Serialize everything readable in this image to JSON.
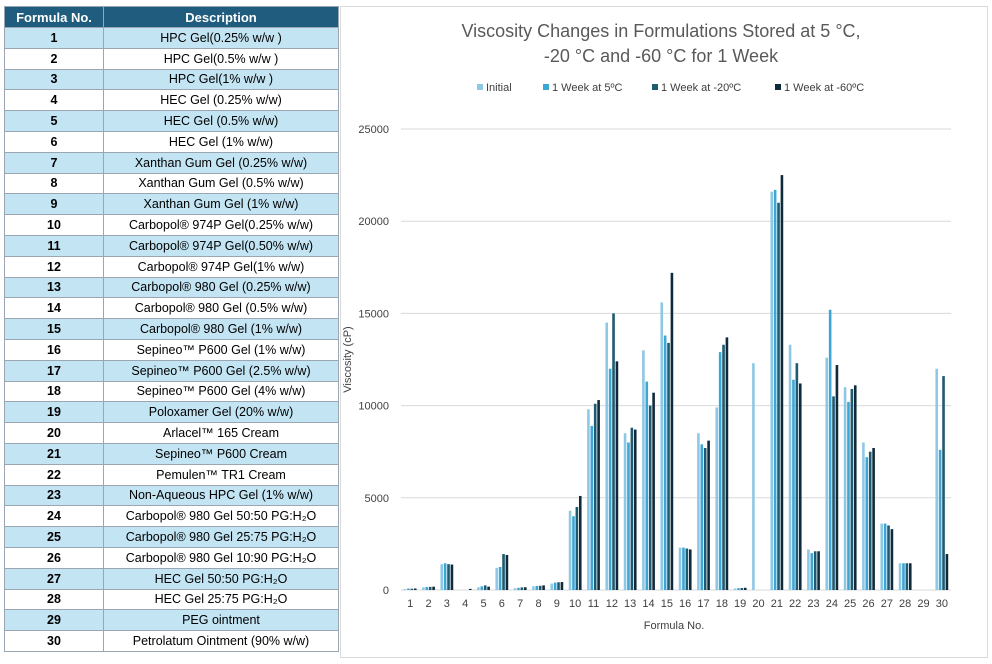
{
  "table": {
    "headers": [
      "Formula No.",
      "Description"
    ],
    "rows": [
      {
        "no": "1",
        "desc": "HPC Gel(0.25% w/w )"
      },
      {
        "no": "2",
        "desc": "HPC Gel(0.5% w/w )"
      },
      {
        "no": "3",
        "desc": "HPC Gel(1% w/w )"
      },
      {
        "no": "4",
        "desc": "HEC Gel (0.25% w/w)"
      },
      {
        "no": "5",
        "desc": "HEC Gel (0.5% w/w)"
      },
      {
        "no": "6",
        "desc": "HEC Gel (1% w/w)"
      },
      {
        "no": "7",
        "desc": "Xanthan Gum Gel (0.25% w/w)"
      },
      {
        "no": "8",
        "desc": "Xanthan Gum Gel (0.5% w/w)"
      },
      {
        "no": "9",
        "desc": "Xanthan Gum Gel (1% w/w)"
      },
      {
        "no": "10",
        "desc": "Carbopol® 974P Gel(0.25% w/w)"
      },
      {
        "no": "11",
        "desc": "Carbopol® 974P Gel(0.50% w/w)"
      },
      {
        "no": "12",
        "desc": "Carbopol® 974P Gel(1% w/w)"
      },
      {
        "no": "13",
        "desc": "Carbopol® 980 Gel (0.25% w/w)"
      },
      {
        "no": "14",
        "desc": "Carbopol® 980 Gel (0.5% w/w)"
      },
      {
        "no": "15",
        "desc": "Carbopol® 980 Gel (1% w/w)"
      },
      {
        "no": "16",
        "desc": "Sepineo™ P600 Gel (1% w/w)"
      },
      {
        "no": "17",
        "desc": "Sepineo™ P600 Gel (2.5% w/w)"
      },
      {
        "no": "18",
        "desc": "Sepineo™ P600 Gel (4% w/w)"
      },
      {
        "no": "19",
        "desc": "Poloxamer Gel (20% w/w)"
      },
      {
        "no": "20",
        "desc": "Arlacel™ 165 Cream"
      },
      {
        "no": "21",
        "desc": "Sepineo™ P600 Cream"
      },
      {
        "no": "22",
        "desc": "Pemulen™ TR1 Cream"
      },
      {
        "no": "23",
        "desc": "Non-Aqueous HPC Gel (1% w/w)"
      },
      {
        "no": "24",
        "desc": "Carbopol® 980 Gel 50:50 PG:H₂O"
      },
      {
        "no": "25",
        "desc": "Carbopol® 980 Gel 25:75 PG:H₂O"
      },
      {
        "no": "26",
        "desc": "Carbopol® 980 Gel 10:90 PG:H₂O"
      },
      {
        "no": "27",
        "desc": "HEC Gel 50:50 PG:H₂O"
      },
      {
        "no": "28",
        "desc": "HEC Gel 25:75 PG:H₂O"
      },
      {
        "no": "29",
        "desc": "PEG ointment"
      },
      {
        "no": "30",
        "desc": "Petrolatum Ointment (90% w/w)"
      }
    ]
  },
  "colors": {
    "table_header_bg": "#1f5c7e",
    "table_row_alt_bg": "#c3e4f3",
    "series": [
      "#8fc8e4",
      "#3ea6d4",
      "#1e5a70",
      "#0f2a3a"
    ],
    "grid": "#d9d9d9"
  },
  "chart_data": {
    "type": "bar",
    "title_lines": [
      "Viscosity Changes in Formulations Stored at 5 °C,",
      "-20 °C and -60 °C  for 1 Week"
    ],
    "xlabel": "Formula No.",
    "ylabel": "Viscosity (cP)",
    "ylim": [
      0,
      25000
    ],
    "yticks": [
      0,
      5000,
      10000,
      15000,
      20000,
      25000
    ],
    "grid": true,
    "legend_position": "top",
    "categories": [
      "1",
      "2",
      "3",
      "4",
      "5",
      "6",
      "7",
      "8",
      "9",
      "10",
      "11",
      "12",
      "13",
      "14",
      "15",
      "16",
      "17",
      "18",
      "19",
      "20",
      "21",
      "22",
      "23",
      "24",
      "25",
      "26",
      "27",
      "28",
      "29",
      "30"
    ],
    "series": [
      {
        "name": "Initial",
        "values": [
          50,
          150,
          1400,
          0,
          150,
          1200,
          100,
          200,
          350,
          4300,
          9800,
          14500,
          8500,
          13000,
          15600,
          2300,
          8500,
          9900,
          80,
          12300,
          21600,
          13300,
          2200,
          12600,
          11000,
          8000,
          3600,
          1450,
          0,
          12000
        ]
      },
      {
        "name": "1 Week at 5ºC",
        "values": [
          80,
          160,
          1450,
          0,
          200,
          1250,
          120,
          220,
          400,
          4000,
          8900,
          12000,
          8000,
          11300,
          13800,
          2300,
          7900,
          12900,
          100,
          0,
          21700,
          11400,
          2000,
          15200,
          10200,
          7200,
          3600,
          1450,
          0,
          7600
        ]
      },
      {
        "name": "1 Week at -20ºC",
        "values": [
          70,
          170,
          1400,
          0,
          250,
          1950,
          140,
          230,
          420,
          4500,
          10100,
          15000,
          8800,
          10000,
          13400,
          2250,
          7700,
          13300,
          110,
          0,
          21000,
          12300,
          2100,
          10500,
          10900,
          7500,
          3500,
          1450,
          0,
          11600
        ]
      },
      {
        "name": "1 Week at -60ºC",
        "values": [
          80,
          180,
          1380,
          60,
          180,
          1900,
          150,
          250,
          430,
          5100,
          10300,
          12400,
          8700,
          10700,
          17200,
          2200,
          8100,
          13700,
          120,
          0,
          22500,
          11200,
          2100,
          12200,
          11100,
          7700,
          3300,
          1450,
          0,
          1950
        ]
      }
    ]
  }
}
